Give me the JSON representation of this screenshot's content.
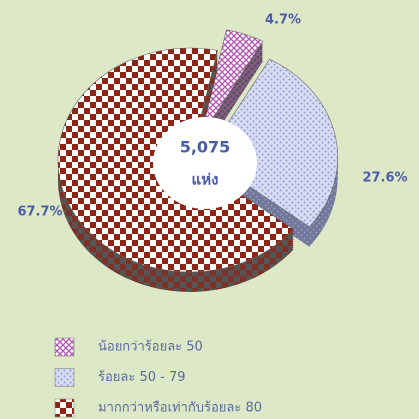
{
  "chart_data": {
    "type": "pie",
    "categories": [
      "น้อยกว่าร้อยละ 50",
      "ร้อยละ 50 - 79",
      "มากกว่าหรือเท่ากับร้อยละ 80"
    ],
    "values": [
      4.7,
      27.6,
      67.7
    ],
    "value_labels": [
      "4.7%",
      "27.6%",
      "67.7%"
    ],
    "colors": [
      "#b45cb4",
      "#8f9ad6",
      "#8e2414"
    ],
    "center_value": "5,075",
    "center_unit": "แห่ง"
  }
}
